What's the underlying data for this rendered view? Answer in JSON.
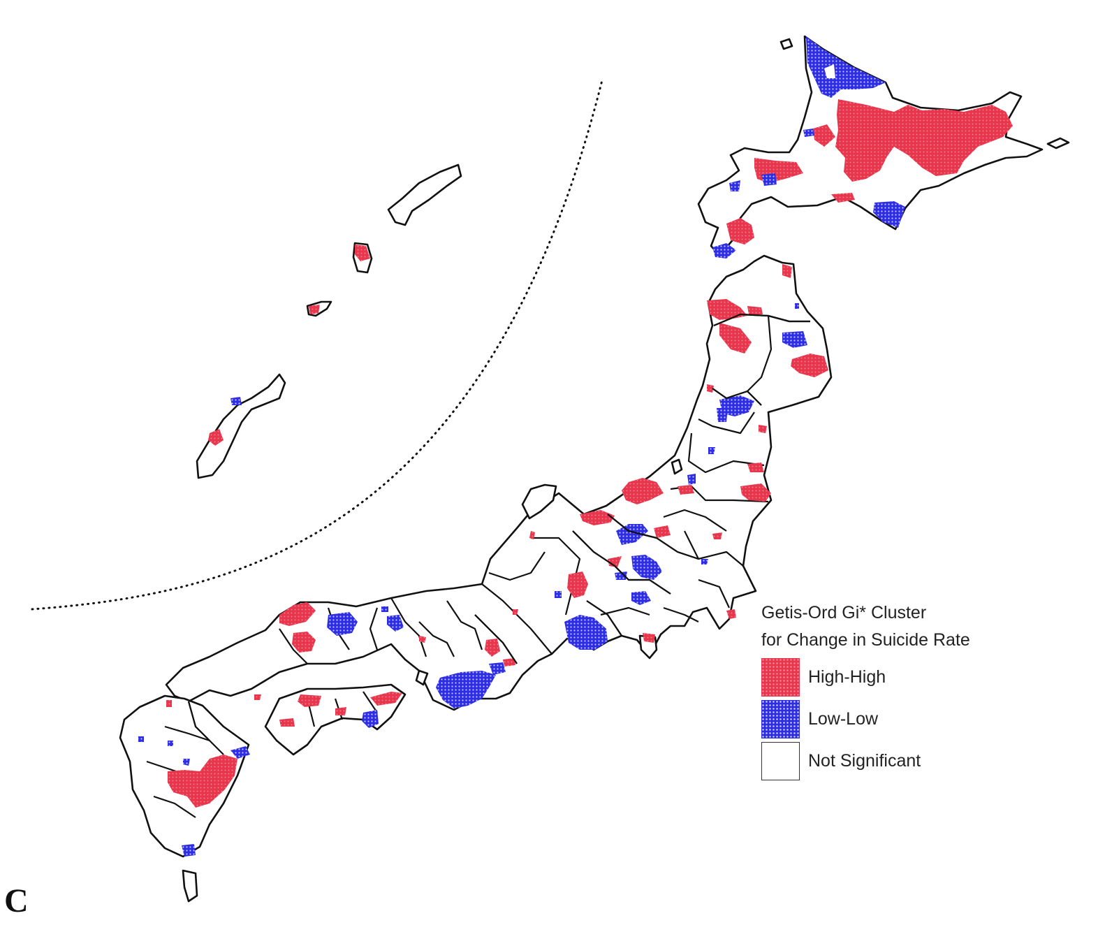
{
  "legend": {
    "title_line1": "Getis-Ord Gi* Cluster",
    "title_line2": "for Change in Suicide Rate",
    "items": [
      {
        "label": "High-High",
        "color": "#e8364d"
      },
      {
        "label": "Low-Low",
        "color": "#2d2de6"
      },
      {
        "label": "Not Significant",
        "color": "#ffffff"
      }
    ]
  },
  "panel_label": "C",
  "colors": {
    "high_high": "#e8364d",
    "low_low": "#2d2de6",
    "border": "#111111"
  }
}
